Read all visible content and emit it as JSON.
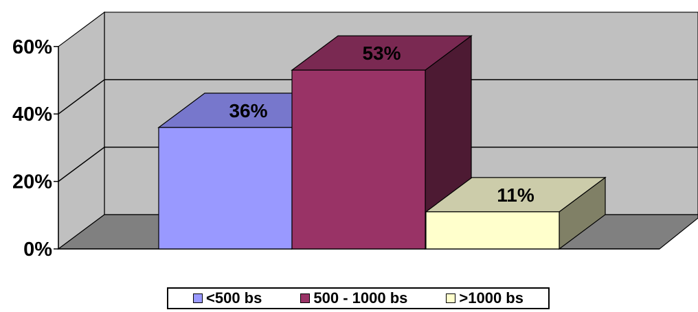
{
  "chart_data": {
    "type": "bar",
    "style": "3d-column",
    "categories": [
      "<500 bs",
      "500 - 1000 bs",
      ">1000 bs"
    ],
    "values": [
      36,
      53,
      11
    ],
    "value_labels": [
      "36%",
      "53%",
      "11%"
    ],
    "ylim": [
      0,
      60
    ],
    "yticks": [
      0,
      20,
      40,
      60
    ],
    "ytick_labels": [
      "0%",
      "20%",
      "40%",
      "60%"
    ],
    "grid": true,
    "legend_position": "bottom",
    "colors": {
      "bars": [
        {
          "front": "#9999ff",
          "top": "#7777cc",
          "side": "#4d4d80"
        },
        {
          "front": "#993366",
          "top": "#7a2952",
          "side": "#4d1a33"
        },
        {
          "front": "#ffffcc",
          "top": "#ccccaa",
          "side": "#808066"
        }
      ],
      "wall": "#c0c0c0",
      "floor": "#808080",
      "gridline": "#000000"
    }
  }
}
